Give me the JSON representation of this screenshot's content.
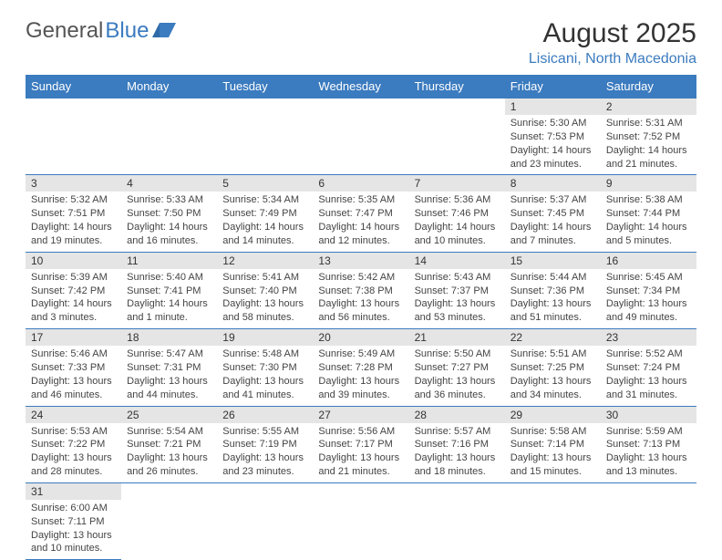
{
  "logo": {
    "text1": "General",
    "text2": "Blue"
  },
  "title": "August 2025",
  "location": "Lisicani, North Macedonia",
  "colors": {
    "header_bg": "#3b7bbf",
    "header_text": "#ffffff",
    "daynum_bg": "#e5e5e5",
    "border": "#3b7bbf",
    "text": "#444444"
  },
  "daysOfWeek": [
    "Sunday",
    "Monday",
    "Tuesday",
    "Wednesday",
    "Thursday",
    "Friday",
    "Saturday"
  ],
  "weeks": [
    [
      {
        "n": "",
        "sr": "",
        "ss": "",
        "dl": ""
      },
      {
        "n": "",
        "sr": "",
        "ss": "",
        "dl": ""
      },
      {
        "n": "",
        "sr": "",
        "ss": "",
        "dl": ""
      },
      {
        "n": "",
        "sr": "",
        "ss": "",
        "dl": ""
      },
      {
        "n": "",
        "sr": "",
        "ss": "",
        "dl": ""
      },
      {
        "n": "1",
        "sr": "Sunrise: 5:30 AM",
        "ss": "Sunset: 7:53 PM",
        "dl": "Daylight: 14 hours and 23 minutes."
      },
      {
        "n": "2",
        "sr": "Sunrise: 5:31 AM",
        "ss": "Sunset: 7:52 PM",
        "dl": "Daylight: 14 hours and 21 minutes."
      }
    ],
    [
      {
        "n": "3",
        "sr": "Sunrise: 5:32 AM",
        "ss": "Sunset: 7:51 PM",
        "dl": "Daylight: 14 hours and 19 minutes."
      },
      {
        "n": "4",
        "sr": "Sunrise: 5:33 AM",
        "ss": "Sunset: 7:50 PM",
        "dl": "Daylight: 14 hours and 16 minutes."
      },
      {
        "n": "5",
        "sr": "Sunrise: 5:34 AM",
        "ss": "Sunset: 7:49 PM",
        "dl": "Daylight: 14 hours and 14 minutes."
      },
      {
        "n": "6",
        "sr": "Sunrise: 5:35 AM",
        "ss": "Sunset: 7:47 PM",
        "dl": "Daylight: 14 hours and 12 minutes."
      },
      {
        "n": "7",
        "sr": "Sunrise: 5:36 AM",
        "ss": "Sunset: 7:46 PM",
        "dl": "Daylight: 14 hours and 10 minutes."
      },
      {
        "n": "8",
        "sr": "Sunrise: 5:37 AM",
        "ss": "Sunset: 7:45 PM",
        "dl": "Daylight: 14 hours and 7 minutes."
      },
      {
        "n": "9",
        "sr": "Sunrise: 5:38 AM",
        "ss": "Sunset: 7:44 PM",
        "dl": "Daylight: 14 hours and 5 minutes."
      }
    ],
    [
      {
        "n": "10",
        "sr": "Sunrise: 5:39 AM",
        "ss": "Sunset: 7:42 PM",
        "dl": "Daylight: 14 hours and 3 minutes."
      },
      {
        "n": "11",
        "sr": "Sunrise: 5:40 AM",
        "ss": "Sunset: 7:41 PM",
        "dl": "Daylight: 14 hours and 1 minute."
      },
      {
        "n": "12",
        "sr": "Sunrise: 5:41 AM",
        "ss": "Sunset: 7:40 PM",
        "dl": "Daylight: 13 hours and 58 minutes."
      },
      {
        "n": "13",
        "sr": "Sunrise: 5:42 AM",
        "ss": "Sunset: 7:38 PM",
        "dl": "Daylight: 13 hours and 56 minutes."
      },
      {
        "n": "14",
        "sr": "Sunrise: 5:43 AM",
        "ss": "Sunset: 7:37 PM",
        "dl": "Daylight: 13 hours and 53 minutes."
      },
      {
        "n": "15",
        "sr": "Sunrise: 5:44 AM",
        "ss": "Sunset: 7:36 PM",
        "dl": "Daylight: 13 hours and 51 minutes."
      },
      {
        "n": "16",
        "sr": "Sunrise: 5:45 AM",
        "ss": "Sunset: 7:34 PM",
        "dl": "Daylight: 13 hours and 49 minutes."
      }
    ],
    [
      {
        "n": "17",
        "sr": "Sunrise: 5:46 AM",
        "ss": "Sunset: 7:33 PM",
        "dl": "Daylight: 13 hours and 46 minutes."
      },
      {
        "n": "18",
        "sr": "Sunrise: 5:47 AM",
        "ss": "Sunset: 7:31 PM",
        "dl": "Daylight: 13 hours and 44 minutes."
      },
      {
        "n": "19",
        "sr": "Sunrise: 5:48 AM",
        "ss": "Sunset: 7:30 PM",
        "dl": "Daylight: 13 hours and 41 minutes."
      },
      {
        "n": "20",
        "sr": "Sunrise: 5:49 AM",
        "ss": "Sunset: 7:28 PM",
        "dl": "Daylight: 13 hours and 39 minutes."
      },
      {
        "n": "21",
        "sr": "Sunrise: 5:50 AM",
        "ss": "Sunset: 7:27 PM",
        "dl": "Daylight: 13 hours and 36 minutes."
      },
      {
        "n": "22",
        "sr": "Sunrise: 5:51 AM",
        "ss": "Sunset: 7:25 PM",
        "dl": "Daylight: 13 hours and 34 minutes."
      },
      {
        "n": "23",
        "sr": "Sunrise: 5:52 AM",
        "ss": "Sunset: 7:24 PM",
        "dl": "Daylight: 13 hours and 31 minutes."
      }
    ],
    [
      {
        "n": "24",
        "sr": "Sunrise: 5:53 AM",
        "ss": "Sunset: 7:22 PM",
        "dl": "Daylight: 13 hours and 28 minutes."
      },
      {
        "n": "25",
        "sr": "Sunrise: 5:54 AM",
        "ss": "Sunset: 7:21 PM",
        "dl": "Daylight: 13 hours and 26 minutes."
      },
      {
        "n": "26",
        "sr": "Sunrise: 5:55 AM",
        "ss": "Sunset: 7:19 PM",
        "dl": "Daylight: 13 hours and 23 minutes."
      },
      {
        "n": "27",
        "sr": "Sunrise: 5:56 AM",
        "ss": "Sunset: 7:17 PM",
        "dl": "Daylight: 13 hours and 21 minutes."
      },
      {
        "n": "28",
        "sr": "Sunrise: 5:57 AM",
        "ss": "Sunset: 7:16 PM",
        "dl": "Daylight: 13 hours and 18 minutes."
      },
      {
        "n": "29",
        "sr": "Sunrise: 5:58 AM",
        "ss": "Sunset: 7:14 PM",
        "dl": "Daylight: 13 hours and 15 minutes."
      },
      {
        "n": "30",
        "sr": "Sunrise: 5:59 AM",
        "ss": "Sunset: 7:13 PM",
        "dl": "Daylight: 13 hours and 13 minutes."
      }
    ],
    [
      {
        "n": "31",
        "sr": "Sunrise: 6:00 AM",
        "ss": "Sunset: 7:11 PM",
        "dl": "Daylight: 13 hours and 10 minutes."
      },
      {
        "n": "",
        "sr": "",
        "ss": "",
        "dl": ""
      },
      {
        "n": "",
        "sr": "",
        "ss": "",
        "dl": ""
      },
      {
        "n": "",
        "sr": "",
        "ss": "",
        "dl": ""
      },
      {
        "n": "",
        "sr": "",
        "ss": "",
        "dl": ""
      },
      {
        "n": "",
        "sr": "",
        "ss": "",
        "dl": ""
      },
      {
        "n": "",
        "sr": "",
        "ss": "",
        "dl": ""
      }
    ]
  ]
}
